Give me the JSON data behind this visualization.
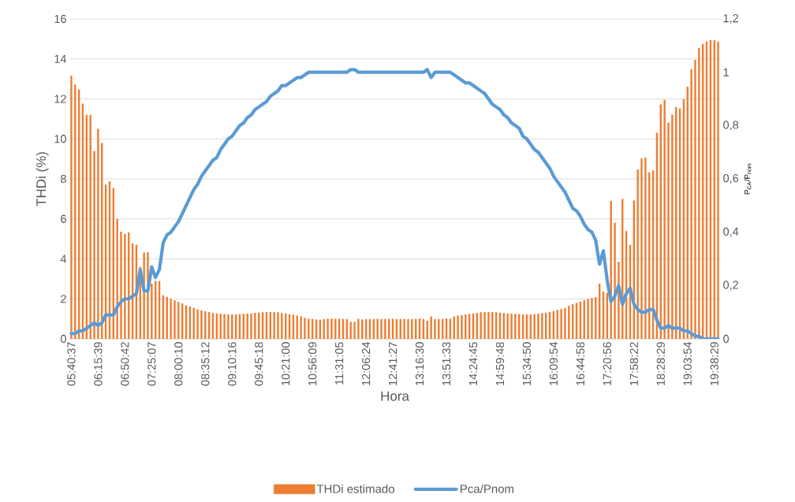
{
  "chart_data": {
    "type": "bar",
    "xlabel": "Hora",
    "ylabel": "THDi (%)",
    "y2label": "P$_{CA}$/P$_{nom}$",
    "categories": [
      "05:40:37",
      null,
      null,
      null,
      null,
      null,
      null,
      "06:15:39",
      null,
      null,
      null,
      null,
      null,
      null,
      "06:50:42",
      null,
      null,
      null,
      null,
      null,
      null,
      "07:25:07",
      null,
      null,
      null,
      null,
      null,
      null,
      "08:00:10",
      null,
      null,
      null,
      null,
      null,
      null,
      "08:35:12",
      null,
      null,
      null,
      null,
      null,
      null,
      "09:10:16",
      null,
      null,
      null,
      null,
      null,
      null,
      "09:45:18",
      null,
      null,
      null,
      null,
      null,
      null,
      "10:21:00",
      null,
      null,
      null,
      null,
      null,
      null,
      "10:56:09",
      null,
      null,
      null,
      null,
      null,
      null,
      "11:31:05",
      null,
      null,
      null,
      null,
      null,
      null,
      "12:06:24",
      null,
      null,
      null,
      null,
      null,
      null,
      "12:41:27",
      null,
      null,
      null,
      null,
      null,
      null,
      "13:16:30",
      null,
      null,
      null,
      null,
      null,
      null,
      "13:51:33",
      null,
      null,
      null,
      null,
      null,
      null,
      "14:24:45",
      null,
      null,
      null,
      null,
      null,
      null,
      "14:59:48",
      null,
      null,
      null,
      null,
      null,
      null,
      "15:34:50",
      null,
      null,
      null,
      null,
      null,
      null,
      "16:09:54",
      null,
      null,
      null,
      null,
      null,
      null,
      "16:44:58",
      null,
      null,
      null,
      null,
      null,
      null,
      "17:20:56",
      null,
      null,
      null,
      null,
      null,
      null,
      "17:58:22",
      null,
      null,
      null,
      null,
      null,
      null,
      "18:28:29",
      null,
      null,
      null,
      null,
      null,
      null,
      "19:03:54",
      null,
      null,
      null,
      null,
      null,
      null,
      "19:38:29",
      null
    ],
    "series": [
      {
        "name": "THDi estimado",
        "color": "#ed7d31",
        "values": [
          13.16,
          12.72,
          12.47,
          11.76,
          11.2,
          11.2,
          9.39,
          10.5,
          9.79,
          7.71,
          7.88,
          7.54,
          5.99,
          5.36,
          5.25,
          5.32,
          4.77,
          4.71,
          3.6,
          4.31,
          4.33,
          2.76,
          2.9,
          2.89,
          2.18,
          2.1,
          2.01,
          1.93,
          1.84,
          1.77,
          1.68,
          1.62,
          1.55,
          1.48,
          1.42,
          1.38,
          1.34,
          1.29,
          1.27,
          1.25,
          1.24,
          1.22,
          1.22,
          1.22,
          1.24,
          1.25,
          1.26,
          1.27,
          1.3,
          1.31,
          1.33,
          1.34,
          1.34,
          1.34,
          1.33,
          1.29,
          1.27,
          1.22,
          1.21,
          1.16,
          1.13,
          1.05,
          1.0,
          0.99,
          0.97,
          0.96,
          0.99,
          1.01,
          1.01,
          1.0,
          1.0,
          1.0,
          0.99,
          0.85,
          0.85,
          1.0,
          0.97,
          0.99,
          0.99,
          0.99,
          1.0,
          0.99,
          0.99,
          0.99,
          1.0,
          0.99,
          0.99,
          0.99,
          0.99,
          0.99,
          1.0,
          1.02,
          0.99,
          0.9,
          1.12,
          0.99,
          0.99,
          0.99,
          1.02,
          1.01,
          1.12,
          1.16,
          1.18,
          1.22,
          1.25,
          1.27,
          1.3,
          1.33,
          1.34,
          1.34,
          1.34,
          1.33,
          1.31,
          1.29,
          1.27,
          1.26,
          1.25,
          1.24,
          1.22,
          1.22,
          1.22,
          1.24,
          1.26,
          1.29,
          1.31,
          1.35,
          1.39,
          1.44,
          1.5,
          1.55,
          1.65,
          1.73,
          1.8,
          1.86,
          1.93,
          2.0,
          2.04,
          2.09,
          2.76,
          2.36,
          2.3,
          6.9,
          5.81,
          3.85,
          7.0,
          5.39,
          4.7,
          6.92,
          8.47,
          9.02,
          9.06,
          8.33,
          8.43,
          10.31,
          11.72,
          11.95,
          10.81,
          11.21,
          11.59,
          11.53,
          11.98,
          12.61,
          13.49,
          13.95,
          14.54,
          14.75,
          14.88,
          14.95,
          14.95,
          14.87
        ]
      },
      {
        "name": "Pca/Pnom",
        "type": "line",
        "axis": "y2",
        "color": "#5b9bd5",
        "values": [
          0.02,
          0.02,
          0.03,
          0.03,
          0.04,
          0.05,
          0.06,
          0.05,
          0.06,
          0.09,
          0.09,
          0.09,
          0.12,
          0.14,
          0.15,
          0.15,
          0.16,
          0.17,
          0.26,
          0.18,
          0.18,
          0.27,
          0.23,
          0.26,
          0.36,
          0.39,
          0.4,
          0.42,
          0.44,
          0.47,
          0.5,
          0.53,
          0.56,
          0.58,
          0.61,
          0.63,
          0.65,
          0.67,
          0.68,
          0.71,
          0.73,
          0.75,
          0.76,
          0.78,
          0.8,
          0.81,
          0.83,
          0.84,
          0.86,
          0.87,
          0.88,
          0.89,
          0.91,
          0.92,
          0.93,
          0.95,
          0.95,
          0.96,
          0.97,
          0.98,
          0.98,
          0.99,
          1.0,
          1.0,
          1.0,
          1.0,
          1.0,
          1.0,
          1.0,
          1.0,
          1.0,
          1.0,
          1.0,
          1.01,
          1.01,
          1.0,
          1.0,
          1.0,
          1.0,
          1.0,
          1.0,
          1.0,
          1.0,
          1.0,
          1.0,
          1.0,
          1.0,
          1.0,
          1.0,
          1.0,
          1.0,
          1.0,
          1.0,
          1.01,
          0.98,
          1.0,
          1.0,
          1.0,
          1.0,
          1.0,
          0.99,
          0.98,
          0.97,
          0.96,
          0.96,
          0.95,
          0.94,
          0.93,
          0.92,
          0.9,
          0.88,
          0.87,
          0.86,
          0.84,
          0.83,
          0.81,
          0.8,
          0.79,
          0.76,
          0.75,
          0.73,
          0.71,
          0.7,
          0.68,
          0.66,
          0.64,
          0.61,
          0.59,
          0.57,
          0.55,
          0.52,
          0.49,
          0.48,
          0.46,
          0.43,
          0.41,
          0.4,
          0.37,
          0.28,
          0.33,
          0.22,
          0.14,
          0.16,
          0.2,
          0.13,
          0.17,
          0.19,
          0.13,
          0.11,
          0.1,
          0.1,
          0.11,
          0.11,
          0.07,
          0.04,
          0.04,
          0.05,
          0.04,
          0.04,
          0.04,
          0.03,
          0.03,
          0.02,
          0.01,
          0.01,
          0,
          0,
          0,
          0,
          0
        ]
      }
    ],
    "ylim": [
      0,
      16
    ],
    "yticks": [
      0,
      2,
      4,
      6,
      8,
      10,
      12,
      14,
      16
    ],
    "y2lim": [
      0,
      1.2
    ],
    "y2ticks": [
      0,
      {
        "value": 0.2,
        "label": "0,2"
      },
      {
        "value": 0.4,
        "label": "0,4"
      },
      {
        "value": 0.6,
        "label": "0,6"
      },
      {
        "value": 0.8,
        "label": "0,8"
      },
      1,
      {
        "value": 1.2,
        "label": "1,2"
      }
    ],
    "grid": "y",
    "legend": "bottom"
  }
}
